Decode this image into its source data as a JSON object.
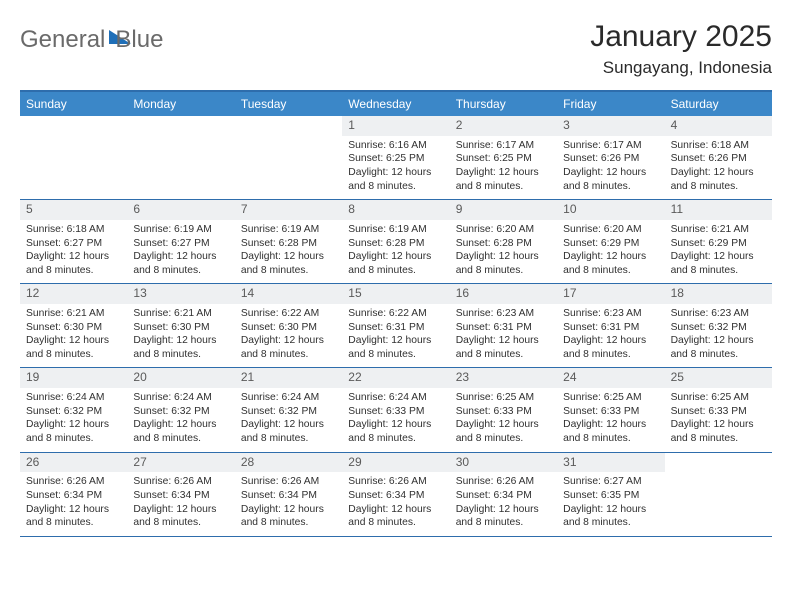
{
  "brand": {
    "word1": "General",
    "word2": "Blue"
  },
  "title": "January 2025",
  "location": "Sungayang, Indonesia",
  "colors": {
    "header_bg": "#3b87c8",
    "rule": "#2e6dac",
    "daynum_bg": "#eef0f2",
    "logo_gray": "#6a6a6a",
    "logo_blue": "#3b7fc4"
  },
  "dow": [
    "Sunday",
    "Monday",
    "Tuesday",
    "Wednesday",
    "Thursday",
    "Friday",
    "Saturday"
  ],
  "weeks": [
    [
      null,
      null,
      null,
      {
        "n": "1",
        "sunrise": "6:16 AM",
        "sunset": "6:25 PM",
        "daylight": "12 hours and 8 minutes."
      },
      {
        "n": "2",
        "sunrise": "6:17 AM",
        "sunset": "6:25 PM",
        "daylight": "12 hours and 8 minutes."
      },
      {
        "n": "3",
        "sunrise": "6:17 AM",
        "sunset": "6:26 PM",
        "daylight": "12 hours and 8 minutes."
      },
      {
        "n": "4",
        "sunrise": "6:18 AM",
        "sunset": "6:26 PM",
        "daylight": "12 hours and 8 minutes."
      }
    ],
    [
      {
        "n": "5",
        "sunrise": "6:18 AM",
        "sunset": "6:27 PM",
        "daylight": "12 hours and 8 minutes."
      },
      {
        "n": "6",
        "sunrise": "6:19 AM",
        "sunset": "6:27 PM",
        "daylight": "12 hours and 8 minutes."
      },
      {
        "n": "7",
        "sunrise": "6:19 AM",
        "sunset": "6:28 PM",
        "daylight": "12 hours and 8 minutes."
      },
      {
        "n": "8",
        "sunrise": "6:19 AM",
        "sunset": "6:28 PM",
        "daylight": "12 hours and 8 minutes."
      },
      {
        "n": "9",
        "sunrise": "6:20 AM",
        "sunset": "6:28 PM",
        "daylight": "12 hours and 8 minutes."
      },
      {
        "n": "10",
        "sunrise": "6:20 AM",
        "sunset": "6:29 PM",
        "daylight": "12 hours and 8 minutes."
      },
      {
        "n": "11",
        "sunrise": "6:21 AM",
        "sunset": "6:29 PM",
        "daylight": "12 hours and 8 minutes."
      }
    ],
    [
      {
        "n": "12",
        "sunrise": "6:21 AM",
        "sunset": "6:30 PM",
        "daylight": "12 hours and 8 minutes."
      },
      {
        "n": "13",
        "sunrise": "6:21 AM",
        "sunset": "6:30 PM",
        "daylight": "12 hours and 8 minutes."
      },
      {
        "n": "14",
        "sunrise": "6:22 AM",
        "sunset": "6:30 PM",
        "daylight": "12 hours and 8 minutes."
      },
      {
        "n": "15",
        "sunrise": "6:22 AM",
        "sunset": "6:31 PM",
        "daylight": "12 hours and 8 minutes."
      },
      {
        "n": "16",
        "sunrise": "6:23 AM",
        "sunset": "6:31 PM",
        "daylight": "12 hours and 8 minutes."
      },
      {
        "n": "17",
        "sunrise": "6:23 AM",
        "sunset": "6:31 PM",
        "daylight": "12 hours and 8 minutes."
      },
      {
        "n": "18",
        "sunrise": "6:23 AM",
        "sunset": "6:32 PM",
        "daylight": "12 hours and 8 minutes."
      }
    ],
    [
      {
        "n": "19",
        "sunrise": "6:24 AM",
        "sunset": "6:32 PM",
        "daylight": "12 hours and 8 minutes."
      },
      {
        "n": "20",
        "sunrise": "6:24 AM",
        "sunset": "6:32 PM",
        "daylight": "12 hours and 8 minutes."
      },
      {
        "n": "21",
        "sunrise": "6:24 AM",
        "sunset": "6:32 PM",
        "daylight": "12 hours and 8 minutes."
      },
      {
        "n": "22",
        "sunrise": "6:24 AM",
        "sunset": "6:33 PM",
        "daylight": "12 hours and 8 minutes."
      },
      {
        "n": "23",
        "sunrise": "6:25 AM",
        "sunset": "6:33 PM",
        "daylight": "12 hours and 8 minutes."
      },
      {
        "n": "24",
        "sunrise": "6:25 AM",
        "sunset": "6:33 PM",
        "daylight": "12 hours and 8 minutes."
      },
      {
        "n": "25",
        "sunrise": "6:25 AM",
        "sunset": "6:33 PM",
        "daylight": "12 hours and 8 minutes."
      }
    ],
    [
      {
        "n": "26",
        "sunrise": "6:26 AM",
        "sunset": "6:34 PM",
        "daylight": "12 hours and 8 minutes."
      },
      {
        "n": "27",
        "sunrise": "6:26 AM",
        "sunset": "6:34 PM",
        "daylight": "12 hours and 8 minutes."
      },
      {
        "n": "28",
        "sunrise": "6:26 AM",
        "sunset": "6:34 PM",
        "daylight": "12 hours and 8 minutes."
      },
      {
        "n": "29",
        "sunrise": "6:26 AM",
        "sunset": "6:34 PM",
        "daylight": "12 hours and 8 minutes."
      },
      {
        "n": "30",
        "sunrise": "6:26 AM",
        "sunset": "6:34 PM",
        "daylight": "12 hours and 8 minutes."
      },
      {
        "n": "31",
        "sunrise": "6:27 AM",
        "sunset": "6:35 PM",
        "daylight": "12 hours and 8 minutes."
      },
      null
    ]
  ],
  "labels": {
    "sunrise": "Sunrise:",
    "sunset": "Sunset:",
    "daylight": "Daylight:"
  }
}
